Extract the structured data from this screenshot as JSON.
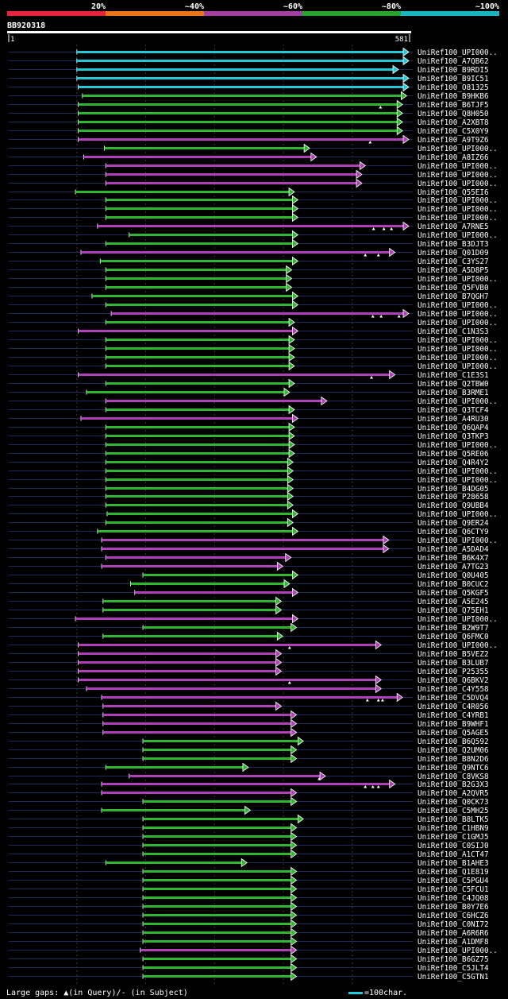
{
  "scale": {
    "labels": [
      "20%",
      "~40%",
      "~60%",
      "~80%",
      "~100%"
    ],
    "colors": [
      "#e8213c",
      "#e8751a",
      "#a23fa2",
      "#29a329",
      "#1ab3bf"
    ]
  },
  "query": {
    "id": "BB920318",
    "start": "1",
    "end": "581",
    "length": 581
  },
  "footer": {
    "legend": "Large gaps: ▲(in Query)/- (in Subject)",
    "scale_label": "=100char."
  },
  "colors": {
    "cyan": "#22c8d8",
    "green": "#2fb82f",
    "purple": "#b040b8",
    "background": "#000000"
  },
  "hits": [
    {
      "name": "UniRef100_UPI000..",
      "qs": 100,
      "qe": 581,
      "c": "cyan"
    },
    {
      "name": "UniRef100_A7QB62",
      "qs": 100,
      "qe": 581,
      "c": "cyan"
    },
    {
      "name": "UniRef100_B9RDI5",
      "qs": 100,
      "qe": 566,
      "c": "cyan"
    },
    {
      "name": "UniRef100_B9IC51",
      "qs": 100,
      "qe": 581,
      "c": "cyan"
    },
    {
      "name": "UniRef100_O81325",
      "qs": 102,
      "qe": 581,
      "c": "cyan"
    },
    {
      "name": "UniRef100_B9HKB6",
      "qs": 108,
      "qe": 578,
      "c": "green"
    },
    {
      "name": "UniRef100_B6TJF5",
      "qs": 102,
      "qe": 572,
      "c": "green",
      "g": [
        541
      ]
    },
    {
      "name": "UniRef100_Q8H050",
      "qs": 102,
      "qe": 572,
      "c": "green"
    },
    {
      "name": "UniRef100_A2XBT8",
      "qs": 102,
      "qe": 572,
      "c": "green"
    },
    {
      "name": "UniRef100_C5X0Y9",
      "qs": 102,
      "qe": 572,
      "c": "green"
    },
    {
      "name": "UniRef100_A9T9Z6",
      "qs": 102,
      "qe": 581,
      "c": "purple",
      "g": [
        526
      ]
    },
    {
      "name": "UniRef100_UPI000..",
      "qs": 140,
      "qe": 437,
      "c": "green"
    },
    {
      "name": "UniRef100_A8IZ66",
      "qs": 110,
      "qe": 447,
      "c": "purple"
    },
    {
      "name": "UniRef100_UPI000..",
      "qs": 142,
      "qe": 518,
      "c": "purple"
    },
    {
      "name": "UniRef100_UPI000..",
      "qs": 142,
      "qe": 513,
      "c": "purple"
    },
    {
      "name": "UniRef100_UPI000..",
      "qs": 142,
      "qe": 513,
      "c": "purple"
    },
    {
      "name": "UniRef100_Q55EI6",
      "qs": 98,
      "qe": 415,
      "c": "green"
    },
    {
      "name": "UniRef100_UPI000..",
      "qs": 142,
      "qe": 420,
      "c": "green"
    },
    {
      "name": "UniRef100_UPI000..",
      "qs": 142,
      "qe": 420,
      "c": "green"
    },
    {
      "name": "UniRef100_UPI000..",
      "qs": 142,
      "qe": 420,
      "c": "green"
    },
    {
      "name": "UniRef100_A7RNE5",
      "qs": 130,
      "qe": 581,
      "c": "purple",
      "g": [
        531,
        546,
        557
      ]
    },
    {
      "name": "UniRef100_UPI000..",
      "qs": 176,
      "qe": 420,
      "c": "green"
    },
    {
      "name": "UniRef100_B3DJT3",
      "qs": 142,
      "qe": 420,
      "c": "green"
    },
    {
      "name": "UniRef100_Q01D09",
      "qs": 106,
      "qe": 561,
      "c": "purple",
      "g": [
        519,
        538
      ]
    },
    {
      "name": "UniRef100_C3YS27",
      "qs": 134,
      "qe": 420,
      "c": "green"
    },
    {
      "name": "UniRef100_A5D8P5",
      "qs": 142,
      "qe": 411,
      "c": "green"
    },
    {
      "name": "UniRef100_UPI000..",
      "qs": 142,
      "qe": 411,
      "c": "green"
    },
    {
      "name": "UniRef100_Q5FVB0",
      "qs": 142,
      "qe": 411,
      "c": "green"
    },
    {
      "name": "UniRef100_B7QGH7",
      "qs": 122,
      "qe": 420,
      "c": "green"
    },
    {
      "name": "UniRef100_UPI000..",
      "qs": 142,
      "qe": 420,
      "c": "green"
    },
    {
      "name": "UniRef100_UPI000..",
      "qs": 150,
      "qe": 581,
      "c": "purple",
      "g": [
        530,
        542,
        568
      ]
    },
    {
      "name": "UniRef100_UPI000..",
      "qs": 142,
      "qe": 415,
      "c": "green"
    },
    {
      "name": "UniRef100_C1N3S3",
      "qs": 102,
      "qe": 420,
      "c": "purple"
    },
    {
      "name": "UniRef100_UPI000..",
      "qs": 142,
      "qe": 415,
      "c": "green"
    },
    {
      "name": "UniRef100_UPI000..",
      "qs": 142,
      "qe": 415,
      "c": "green"
    },
    {
      "name": "UniRef100_UPI000..",
      "qs": 142,
      "qe": 415,
      "c": "green"
    },
    {
      "name": "UniRef100_UPI000..",
      "qs": 142,
      "qe": 415,
      "c": "green"
    },
    {
      "name": "UniRef100_C1E3S1",
      "qs": 102,
      "qe": 561,
      "c": "purple",
      "g": [
        528
      ]
    },
    {
      "name": "UniRef100_Q2TBW0",
      "qs": 142,
      "qe": 415,
      "c": "green"
    },
    {
      "name": "UniRef100_B3RME1",
      "qs": 114,
      "qe": 408,
      "c": "green"
    },
    {
      "name": "UniRef100_UPI000..",
      "qs": 142,
      "qe": 462,
      "c": "purple"
    },
    {
      "name": "UniRef100_Q3TCF4",
      "qs": 142,
      "qe": 415,
      "c": "green"
    },
    {
      "name": "UniRef100_A4RU30",
      "qs": 106,
      "qe": 420,
      "c": "purple"
    },
    {
      "name": "UniRef100_Q6QAP4",
      "qs": 142,
      "qe": 415,
      "c": "green"
    },
    {
      "name": "UniRef100_Q3TKP3",
      "qs": 142,
      "qe": 415,
      "c": "green"
    },
    {
      "name": "UniRef100_UPI000..",
      "qs": 142,
      "qe": 415,
      "c": "green"
    },
    {
      "name": "UniRef100_Q5RE06",
      "qs": 142,
      "qe": 415,
      "c": "green"
    },
    {
      "name": "UniRef100_Q4R4Y2",
      "qs": 142,
      "qe": 413,
      "c": "green"
    },
    {
      "name": "UniRef100_UPI000..",
      "qs": 142,
      "qe": 413,
      "c": "green"
    },
    {
      "name": "UniRef100_UPI000..",
      "qs": 142,
      "qe": 413,
      "c": "green"
    },
    {
      "name": "UniRef100_B4DG05",
      "qs": 142,
      "qe": 413,
      "c": "green"
    },
    {
      "name": "UniRef100_P28658",
      "qs": 142,
      "qe": 413,
      "c": "green"
    },
    {
      "name": "UniRef100_Q9UBB4",
      "qs": 142,
      "qe": 413,
      "c": "green"
    },
    {
      "name": "UniRef100_UPI000..",
      "qs": 144,
      "qe": 420,
      "c": "green"
    },
    {
      "name": "UniRef100_Q9ER24",
      "qs": 142,
      "qe": 413,
      "c": "green"
    },
    {
      "name": "UniRef100_Q6CTY9",
      "qs": 130,
      "qe": 420,
      "c": "green"
    },
    {
      "name": "UniRef100_UPI000..",
      "qs": 136,
      "qe": 552,
      "c": "purple"
    },
    {
      "name": "UniRef100_A5DAD4",
      "qs": 136,
      "qe": 552,
      "c": "purple"
    },
    {
      "name": "UniRef100_B6K4X7",
      "qs": 142,
      "qe": 410,
      "c": "purple"
    },
    {
      "name": "UniRef100_A7TG23",
      "qs": 136,
      "qe": 398,
      "c": "purple"
    },
    {
      "name": "UniRef100_Q0U405",
      "qs": 196,
      "qe": 420,
      "c": "green"
    },
    {
      "name": "UniRef100_B0CUC2",
      "qs": 178,
      "qe": 408,
      "c": "green"
    },
    {
      "name": "UniRef100_Q5KGF5",
      "qs": 184,
      "qe": 420,
      "c": "purple"
    },
    {
      "name": "UniRef100_A5E245",
      "qs": 138,
      "qe": 396,
      "c": "green"
    },
    {
      "name": "UniRef100_Q75EH1",
      "qs": 138,
      "qe": 396,
      "c": "green"
    },
    {
      "name": "UniRef100_UPI000..",
      "qs": 98,
      "qe": 420,
      "c": "purple"
    },
    {
      "name": "UniRef100_B2W9T7",
      "qs": 196,
      "qe": 418,
      "c": "green"
    },
    {
      "name": "UniRef100_Q6FMC0",
      "qs": 138,
      "qe": 398,
      "c": "green"
    },
    {
      "name": "UniRef100_UPI000..",
      "qs": 102,
      "qe": 541,
      "c": "purple",
      "g": [
        409
      ]
    },
    {
      "name": "UniRef100_B5VEZ2",
      "qs": 102,
      "qe": 396,
      "c": "purple"
    },
    {
      "name": "UniRef100_B3LUB7",
      "qs": 102,
      "qe": 396,
      "c": "purple"
    },
    {
      "name": "UniRef100_P25355",
      "qs": 102,
      "qe": 396,
      "c": "purple"
    },
    {
      "name": "UniRef100_Q6BKV2",
      "qs": 102,
      "qe": 541,
      "c": "purple",
      "g": [
        409
      ]
    },
    {
      "name": "UniRef100_C4Y558",
      "qs": 114,
      "qe": 541,
      "c": "purple"
    },
    {
      "name": "UniRef100_C5DVQ4",
      "qs": 136,
      "qe": 572,
      "c": "purple",
      "g": [
        522,
        538,
        544
      ]
    },
    {
      "name": "UniRef100_C4R056",
      "qs": 138,
      "qe": 396,
      "c": "purple"
    },
    {
      "name": "UniRef100_C4YRB1",
      "qs": 138,
      "qe": 418,
      "c": "purple"
    },
    {
      "name": "UniRef100_B9WHF1",
      "qs": 138,
      "qe": 418,
      "c": "purple"
    },
    {
      "name": "UniRef100_Q5AGE5",
      "qs": 138,
      "qe": 418,
      "c": "purple"
    },
    {
      "name": "UniRef100_B6Q592",
      "qs": 196,
      "qe": 428,
      "c": "green"
    },
    {
      "name": "UniRef100_Q2UM06",
      "qs": 196,
      "qe": 418,
      "c": "green"
    },
    {
      "name": "UniRef100_B8N2D6",
      "qs": 196,
      "qe": 418,
      "c": "green"
    },
    {
      "name": "UniRef100_Q9NTC6",
      "qs": 142,
      "qe": 348,
      "c": "green"
    },
    {
      "name": "UniRef100_C8VKS8",
      "qs": 176,
      "qe": 460,
      "c": "purple",
      "g": [
        452
      ]
    },
    {
      "name": "UniRef100_B2G3X3",
      "qs": 136,
      "qe": 561,
      "c": "purple",
      "g": [
        519,
        530,
        538
      ]
    },
    {
      "name": "UniRef100_A2QVR5",
      "qs": 136,
      "qe": 418,
      "c": "purple"
    },
    {
      "name": "UniRef100_Q0CK73",
      "qs": 196,
      "qe": 418,
      "c": "green"
    },
    {
      "name": "UniRef100_C5MH25",
      "qs": 136,
      "qe": 351,
      "c": "green"
    },
    {
      "name": "UniRef100_B8LTK5",
      "qs": 196,
      "qe": 428,
      "c": "green"
    },
    {
      "name": "UniRef100_C1HBN9",
      "qs": 196,
      "qe": 418,
      "c": "green"
    },
    {
      "name": "UniRef100_C1GMJ5",
      "qs": 196,
      "qe": 418,
      "c": "green"
    },
    {
      "name": "UniRef100_C0SIJ0",
      "qs": 196,
      "qe": 418,
      "c": "green"
    },
    {
      "name": "UniRef100_A1CT47",
      "qs": 196,
      "qe": 418,
      "c": "green"
    },
    {
      "name": "UniRef100_B1AHE3",
      "qs": 142,
      "qe": 346,
      "c": "green"
    },
    {
      "name": "UniRef100_Q1E819",
      "qs": 196,
      "qe": 418,
      "c": "green"
    },
    {
      "name": "UniRef100_C5PGU4",
      "qs": 196,
      "qe": 418,
      "c": "green"
    },
    {
      "name": "UniRef100_C5FCU1",
      "qs": 196,
      "qe": 418,
      "c": "green"
    },
    {
      "name": "UniRef100_C4JQ08",
      "qs": 196,
      "qe": 418,
      "c": "green"
    },
    {
      "name": "UniRef100_B0Y7E6",
      "qs": 196,
      "qe": 418,
      "c": "green"
    },
    {
      "name": "UniRef100_C6HCZ6",
      "qs": 196,
      "qe": 418,
      "c": "green"
    },
    {
      "name": "UniRef100_C0NI72",
      "qs": 196,
      "qe": 418,
      "c": "green"
    },
    {
      "name": "UniRef100_A6R6R6",
      "qs": 196,
      "qe": 418,
      "c": "green"
    },
    {
      "name": "UniRef100_A1DMF8",
      "qs": 196,
      "qe": 418,
      "c": "green"
    },
    {
      "name": "UniRef100_UPI000..",
      "qs": 192,
      "qe": 418,
      "c": "purple"
    },
    {
      "name": "UniRef100_B6GZ75",
      "qs": 196,
      "qe": 418,
      "c": "green"
    },
    {
      "name": "UniRef100_C5JLT4",
      "qs": 196,
      "qe": 418,
      "c": "green"
    },
    {
      "name": "UniRef100_C5GTN1",
      "qs": 196,
      "qe": 418,
      "c": "green"
    }
  ]
}
